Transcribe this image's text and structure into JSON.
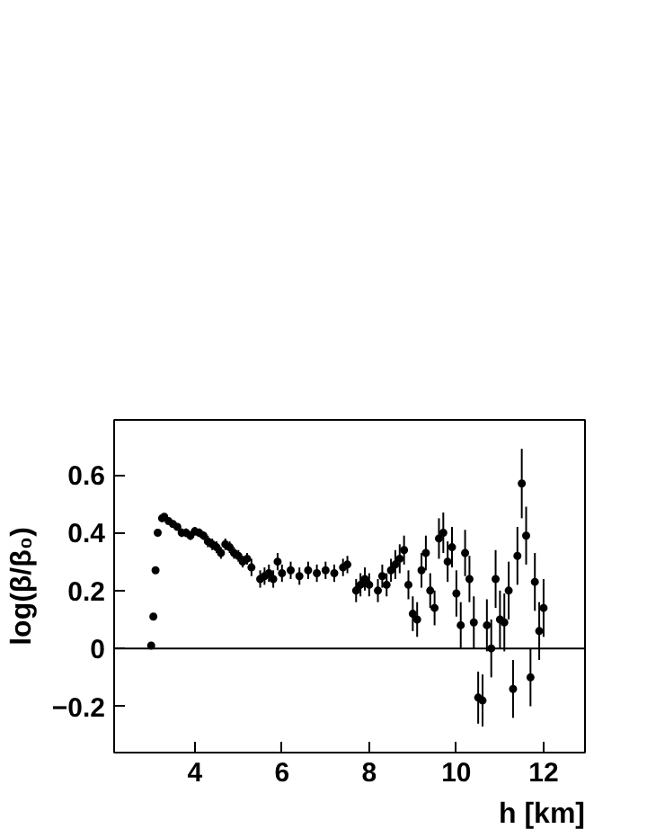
{
  "chart_data": {
    "type": "scatter",
    "xlabel": "h [km]",
    "ylabel": "log(β/β₀)",
    "x": [
      3.0,
      3.05,
      3.1,
      3.15,
      3.25,
      3.3,
      3.4,
      3.5,
      3.6,
      3.7,
      3.8,
      3.9,
      4.0,
      4.1,
      4.2,
      4.3,
      4.4,
      4.5,
      4.6,
      4.7,
      4.8,
      4.9,
      5.0,
      5.1,
      5.2,
      5.3,
      5.5,
      5.6,
      5.7,
      5.8,
      5.9,
      6.0,
      6.2,
      6.4,
      6.6,
      6.8,
      7.0,
      7.2,
      7.4,
      7.5,
      7.7,
      7.8,
      7.9,
      8.0,
      8.2,
      8.3,
      8.4,
      8.5,
      8.6,
      8.7,
      8.8,
      8.9,
      9.0,
      9.1,
      9.2,
      9.3,
      9.4,
      9.5,
      9.6,
      9.7,
      9.8,
      9.9,
      10.0,
      10.1,
      10.2,
      10.3,
      10.4,
      10.5,
      10.6,
      10.7,
      10.8,
      10.9,
      11.0,
      11.1,
      11.2,
      11.3,
      11.4,
      11.5,
      11.6,
      11.7,
      11.8,
      11.9,
      12.0
    ],
    "values": [
      0.01,
      0.11,
      0.27,
      0.4,
      0.45,
      0.455,
      0.44,
      0.43,
      0.42,
      0.4,
      0.4,
      0.39,
      0.405,
      0.4,
      0.39,
      0.37,
      0.36,
      0.35,
      0.33,
      0.36,
      0.35,
      0.33,
      0.32,
      0.3,
      0.31,
      0.28,
      0.24,
      0.25,
      0.26,
      0.24,
      0.3,
      0.26,
      0.27,
      0.25,
      0.27,
      0.26,
      0.27,
      0.26,
      0.28,
      0.29,
      0.2,
      0.22,
      0.24,
      0.22,
      0.2,
      0.25,
      0.22,
      0.27,
      0.29,
      0.31,
      0.34,
      0.22,
      0.12,
      0.1,
      0.27,
      0.33,
      0.2,
      0.14,
      0.38,
      0.4,
      0.3,
      0.35,
      0.19,
      0.08,
      0.33,
      0.24,
      0.09,
      -0.17,
      -0.18,
      0.08,
      0.0,
      0.24,
      0.1,
      0.09,
      0.2,
      -0.14,
      0.32,
      0.57,
      0.39,
      -0.1,
      0.23,
      0.06,
      0.14
    ],
    "errors": [
      null,
      null,
      null,
      null,
      0.01,
      0.01,
      0.01,
      0.01,
      0.01,
      0.015,
      0.015,
      0.015,
      0.015,
      0.015,
      0.015,
      0.02,
      0.02,
      0.02,
      0.02,
      0.02,
      0.02,
      0.02,
      0.02,
      0.02,
      0.02,
      0.03,
      0.03,
      0.03,
      0.03,
      0.03,
      0.03,
      0.03,
      0.03,
      0.03,
      0.03,
      0.03,
      0.03,
      0.03,
      0.03,
      0.03,
      0.04,
      0.04,
      0.04,
      0.04,
      0.04,
      0.04,
      0.04,
      0.04,
      0.05,
      0.05,
      0.05,
      0.05,
      0.06,
      0.06,
      0.06,
      0.06,
      0.06,
      0.06,
      0.07,
      0.07,
      0.07,
      0.07,
      0.08,
      0.08,
      0.08,
      0.08,
      0.09,
      0.09,
      0.09,
      0.09,
      0.1,
      0.1,
      0.1,
      0.1,
      0.1,
      0.1,
      0.1,
      0.12,
      0.1,
      0.1,
      0.1,
      0.1,
      0.1
    ],
    "color": "#000000",
    "marker": "circle",
    "xlim": [
      2.15,
      12.95
    ],
    "ylim": [
      -0.36,
      0.79
    ],
    "xticks": [
      4,
      6,
      8,
      10,
      12
    ],
    "yticks": [
      -0.2,
      {
        "value": 0,
        "label": "0"
      },
      0.2,
      0.4,
      0.6
    ],
    "ref_lines": [
      {
        "axis": "y",
        "value": 0,
        "label": null,
        "color": "#000000"
      }
    ],
    "grid": false
  }
}
